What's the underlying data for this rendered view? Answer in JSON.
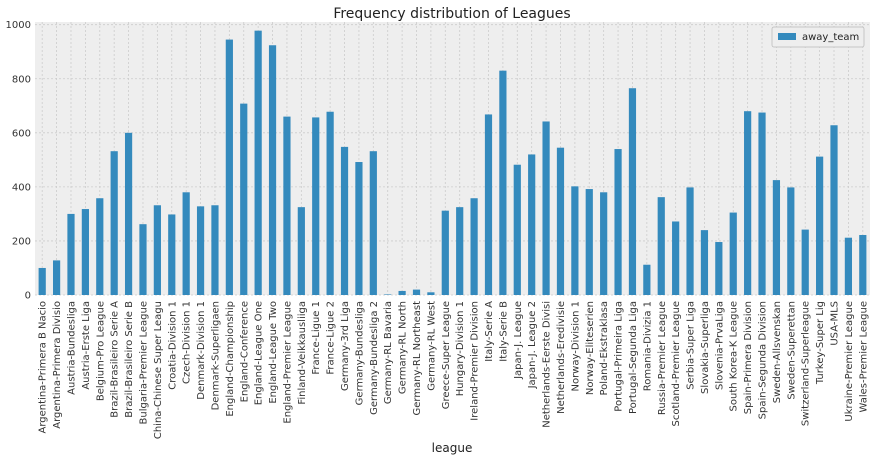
{
  "chart_data": {
    "type": "bar",
    "title": "Frequency distribution of Leagues",
    "xlabel": "league",
    "ylabel": "",
    "ylim": [
      0,
      1010
    ],
    "yticks": [
      0,
      200,
      400,
      600,
      800,
      1000
    ],
    "grid": true,
    "legend_position": "top-right",
    "colors": {
      "bar": "#348ABD",
      "plot_bg": "#EEEEEE",
      "grid": "#CCCCCC"
    },
    "categories": [
      "Argentina-Primera B Nacio",
      "Argentina-Primera Divisio",
      "Austria-Bundesliga",
      "Austria-Erste Liga",
      "Belgium-Pro League",
      "Brazil-Brasileiro Serie A",
      "Brazil-Brasileiro Serie B",
      "Bulgaria-Premier League",
      "China-Chinese Super Leagu",
      "Croatia-Division 1",
      "Czech-Division 1",
      "Denmark-Division 1",
      "Denmark-Superligaen",
      "England-Championship",
      "England-Conference",
      "England-League One",
      "England-League Two",
      "England-Premier League",
      "Finland-Veikkausliiga",
      "France-Ligue 1",
      "France-Ligue 2",
      "Germany-3rd Liga",
      "Germany-Bundesliga",
      "Germany-Bundesliga 2",
      "Germany-RL Bavaria",
      "Germany-RL North",
      "Germany-RL Northeast",
      "Germany-RL West",
      "Greece-Super League",
      "Hungary-Division 1",
      "Ireland-Premier Division",
      "Italy-Serie A",
      "Italy-Serie B",
      "Japan-J. League",
      "Japan-J. League 2",
      "Netherlands-Eerste Divisi",
      "Netherlands-Eredivisie",
      "Norway-Division 1",
      "Norway-Eliteserien",
      "Poland-Ekstraklasa",
      "Portugal-Primeira Liga",
      "Portugal-Segunda Liga",
      "Romania-Divizia 1",
      "Russia-Premier League",
      "Scotland-Premier League",
      "Serbia-Super Liga",
      "Slovakia-Superliga",
      "Slovenia-PrvaLiga",
      "South Korea-K League",
      "Spain-Primera Division",
      "Spain-Segunda Division",
      "Sweden-Allsvenskan",
      "Sweden-Superettan",
      "Switzerland-Superleague",
      "Turkey-Super Lig",
      "USA-MLS",
      "Ukraine-Premier League",
      "Wales-Premier League"
    ],
    "series": [
      {
        "name": "away_team",
        "values": [
          100,
          128,
          300,
          318,
          358,
          532,
          600,
          262,
          332,
          298,
          380,
          328,
          332,
          945,
          708,
          978,
          924,
          660,
          325,
          657,
          678,
          548,
          492,
          532,
          2,
          15,
          20,
          10,
          312,
          325,
          358,
          668,
          830,
          482,
          520,
          642,
          545,
          402,
          392,
          380,
          540,
          765,
          112,
          362,
          272,
          398,
          240,
          196,
          305,
          680,
          675,
          425,
          398,
          242,
          512,
          628,
          212,
          222
        ]
      }
    ]
  }
}
